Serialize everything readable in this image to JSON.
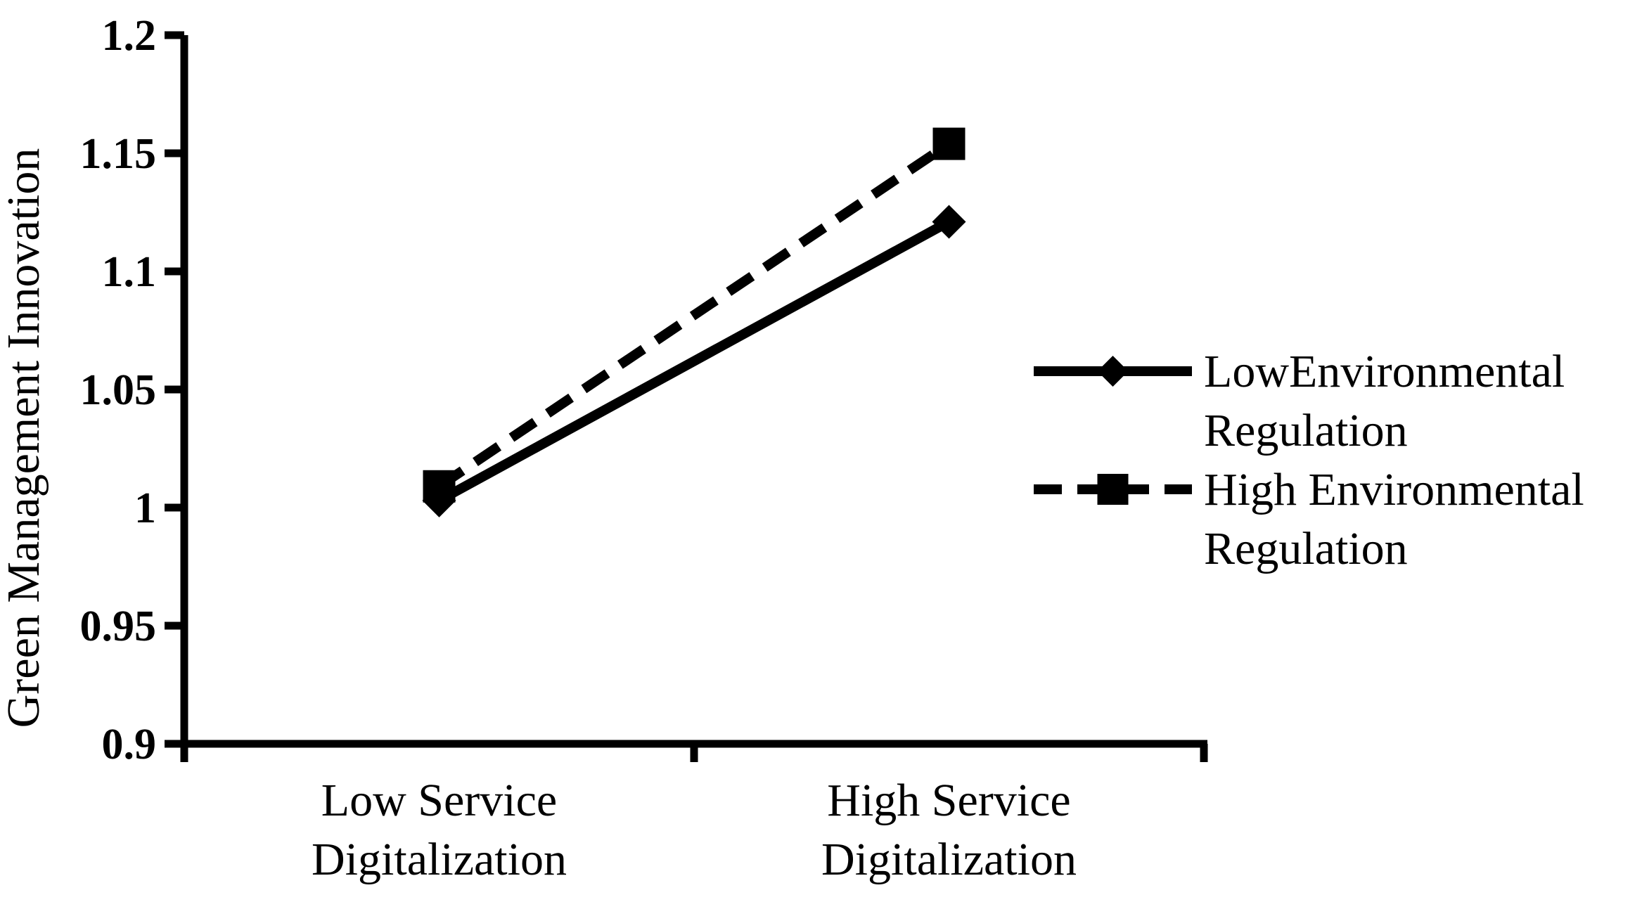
{
  "chart_data": {
    "type": "line",
    "title": "",
    "xlabel": "",
    "ylabel": "Green Management Innovation",
    "categories": [
      [
        "Low Service",
        "Digitalization"
      ],
      [
        "High Service",
        "Digitalization"
      ]
    ],
    "ylim": [
      0.9,
      1.2
    ],
    "yticks": [
      "0.9",
      "0.95",
      "1",
      "1.05",
      "1.1",
      "1.15",
      "1.2"
    ],
    "grid": false,
    "legend_position": "right",
    "series": [
      {
        "name": [
          "LowEnvironmental",
          "Regulation"
        ],
        "values": [
          1.003,
          1.121
        ],
        "line_style": "solid",
        "marker": "diamond",
        "color": "#000000"
      },
      {
        "name": [
          "High Environmental",
          "Regulation"
        ],
        "values": [
          1.009,
          1.154
        ],
        "line_style": "dashed",
        "marker": "square",
        "color": "#000000"
      }
    ]
  }
}
